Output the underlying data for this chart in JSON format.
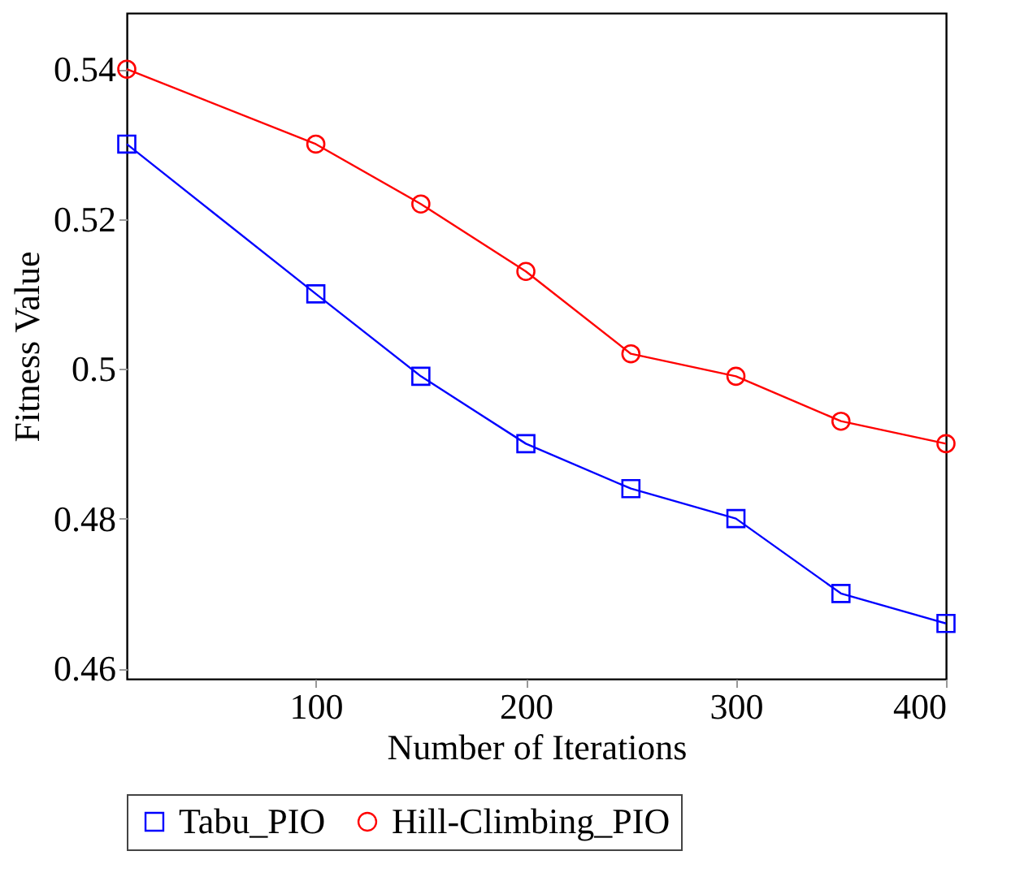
{
  "chart_data": {
    "type": "line",
    "xlabel": "Number of Iterations",
    "ylabel": "Fitness Value",
    "x": [
      10,
      100,
      150,
      200,
      250,
      300,
      350,
      400
    ],
    "series": [
      {
        "name": "Tabu_PIO",
        "color": "#0000ff",
        "marker": "square",
        "values": [
          0.53,
          0.51,
          0.499,
          0.49,
          0.484,
          0.48,
          0.47,
          0.466
        ]
      },
      {
        "name": "Hill-Climbing_PIO",
        "color": "#ff0000",
        "marker": "circle",
        "values": [
          0.54,
          0.53,
          0.522,
          0.513,
          0.502,
          0.499,
          0.493,
          0.49
        ]
      }
    ],
    "xlim": [
      10,
      400
    ],
    "xticks": [
      100,
      200,
      300,
      400
    ],
    "ylim": [
      0.4586,
      0.5475
    ],
    "yticks": [
      0.46,
      0.48,
      0.5,
      0.52,
      0.54
    ],
    "legend": "bottom",
    "line_style": "solid"
  }
}
